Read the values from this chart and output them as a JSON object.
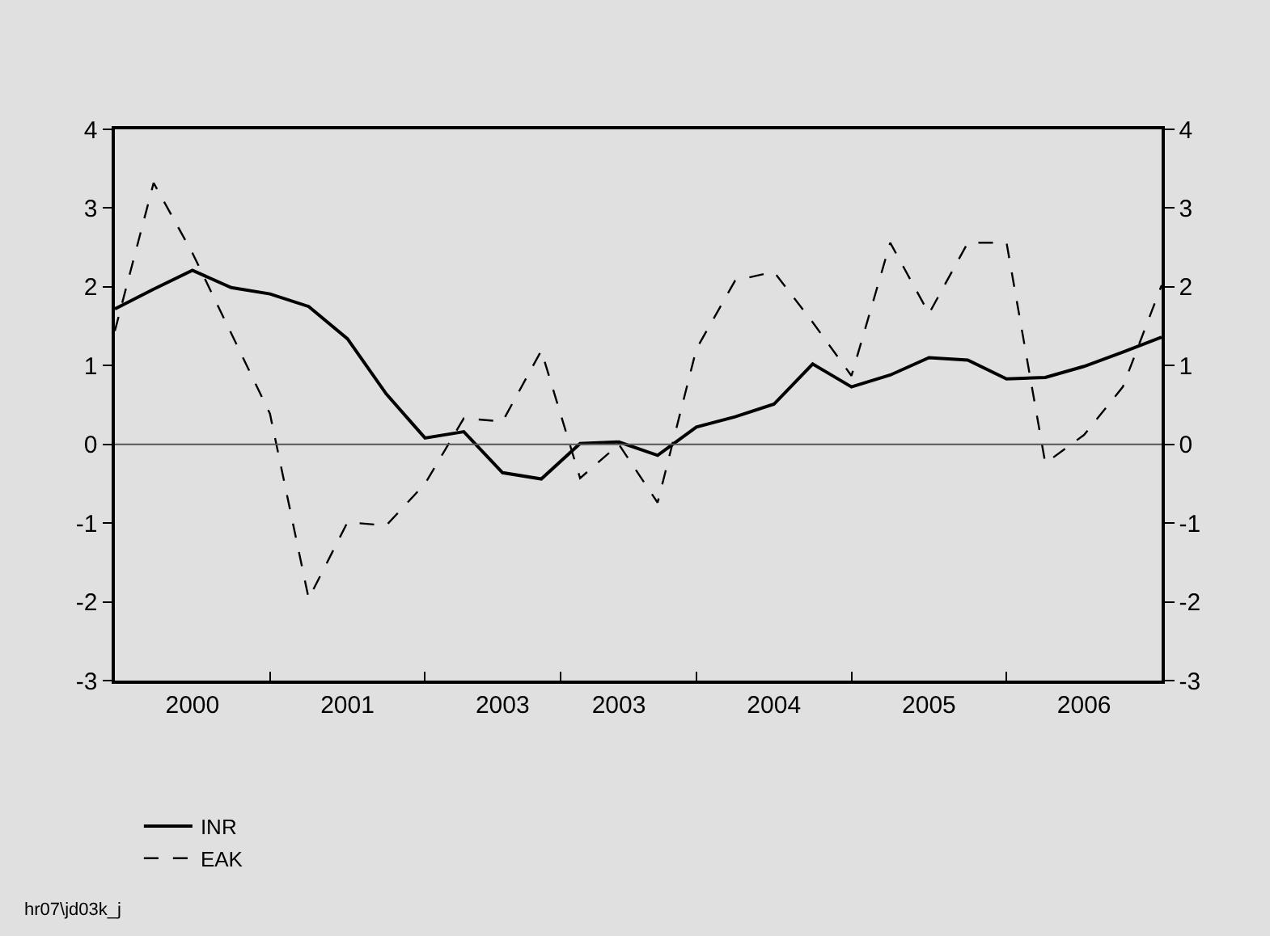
{
  "chart_data": {
    "type": "line",
    "categories": [
      null,
      null,
      "2000",
      null,
      null,
      null,
      "2001",
      null,
      null,
      null,
      "2003",
      null,
      null,
      "2003",
      null,
      null,
      null,
      "2004",
      null,
      null,
      null,
      "2005",
      null,
      null,
      null,
      "2006",
      null,
      null
    ],
    "series": [
      {
        "name": "INR",
        "color": "#000000",
        "line_style": "solid",
        "values": [
          1.72,
          1.97,
          2.21,
          1.99,
          1.91,
          1.75,
          1.34,
          0.64,
          0.08,
          0.16,
          -0.36,
          -0.44,
          0.01,
          0.03,
          -0.14,
          0.22,
          0.35,
          0.51,
          1.02,
          0.73,
          0.88,
          1.1,
          1.07,
          0.83,
          0.85,
          0.99,
          1.17,
          1.36
        ]
      },
      {
        "name": "EAK",
        "color": "#000000",
        "line_style": "dashed",
        "values": [
          1.44,
          3.32,
          2.43,
          1.41,
          0.39,
          -1.96,
          -0.99,
          -1.03,
          -0.5,
          0.33,
          0.29,
          1.19,
          -0.43,
          0.0,
          -0.74,
          1.21,
          2.08,
          2.19,
          1.55,
          0.87,
          2.56,
          1.66,
          2.56,
          2.56,
          -0.24,
          0.12,
          0.73,
          2.02
        ]
      }
    ],
    "ylim": [
      -3,
      4
    ],
    "yticks": [
      -3,
      -2,
      -1,
      0,
      1,
      2,
      3,
      4
    ],
    "y2lim": [
      -3,
      4
    ],
    "y2ticks": [
      -3,
      -2,
      -1,
      0,
      1,
      2,
      3,
      4
    ],
    "ref_lines": [
      {
        "axis": "y",
        "value": 0,
        "color": "#555555"
      }
    ],
    "annotations": [
      "hr07\\jd03k_j"
    ],
    "grid": false,
    "legend": "bottom left",
    "marker": "none"
  }
}
